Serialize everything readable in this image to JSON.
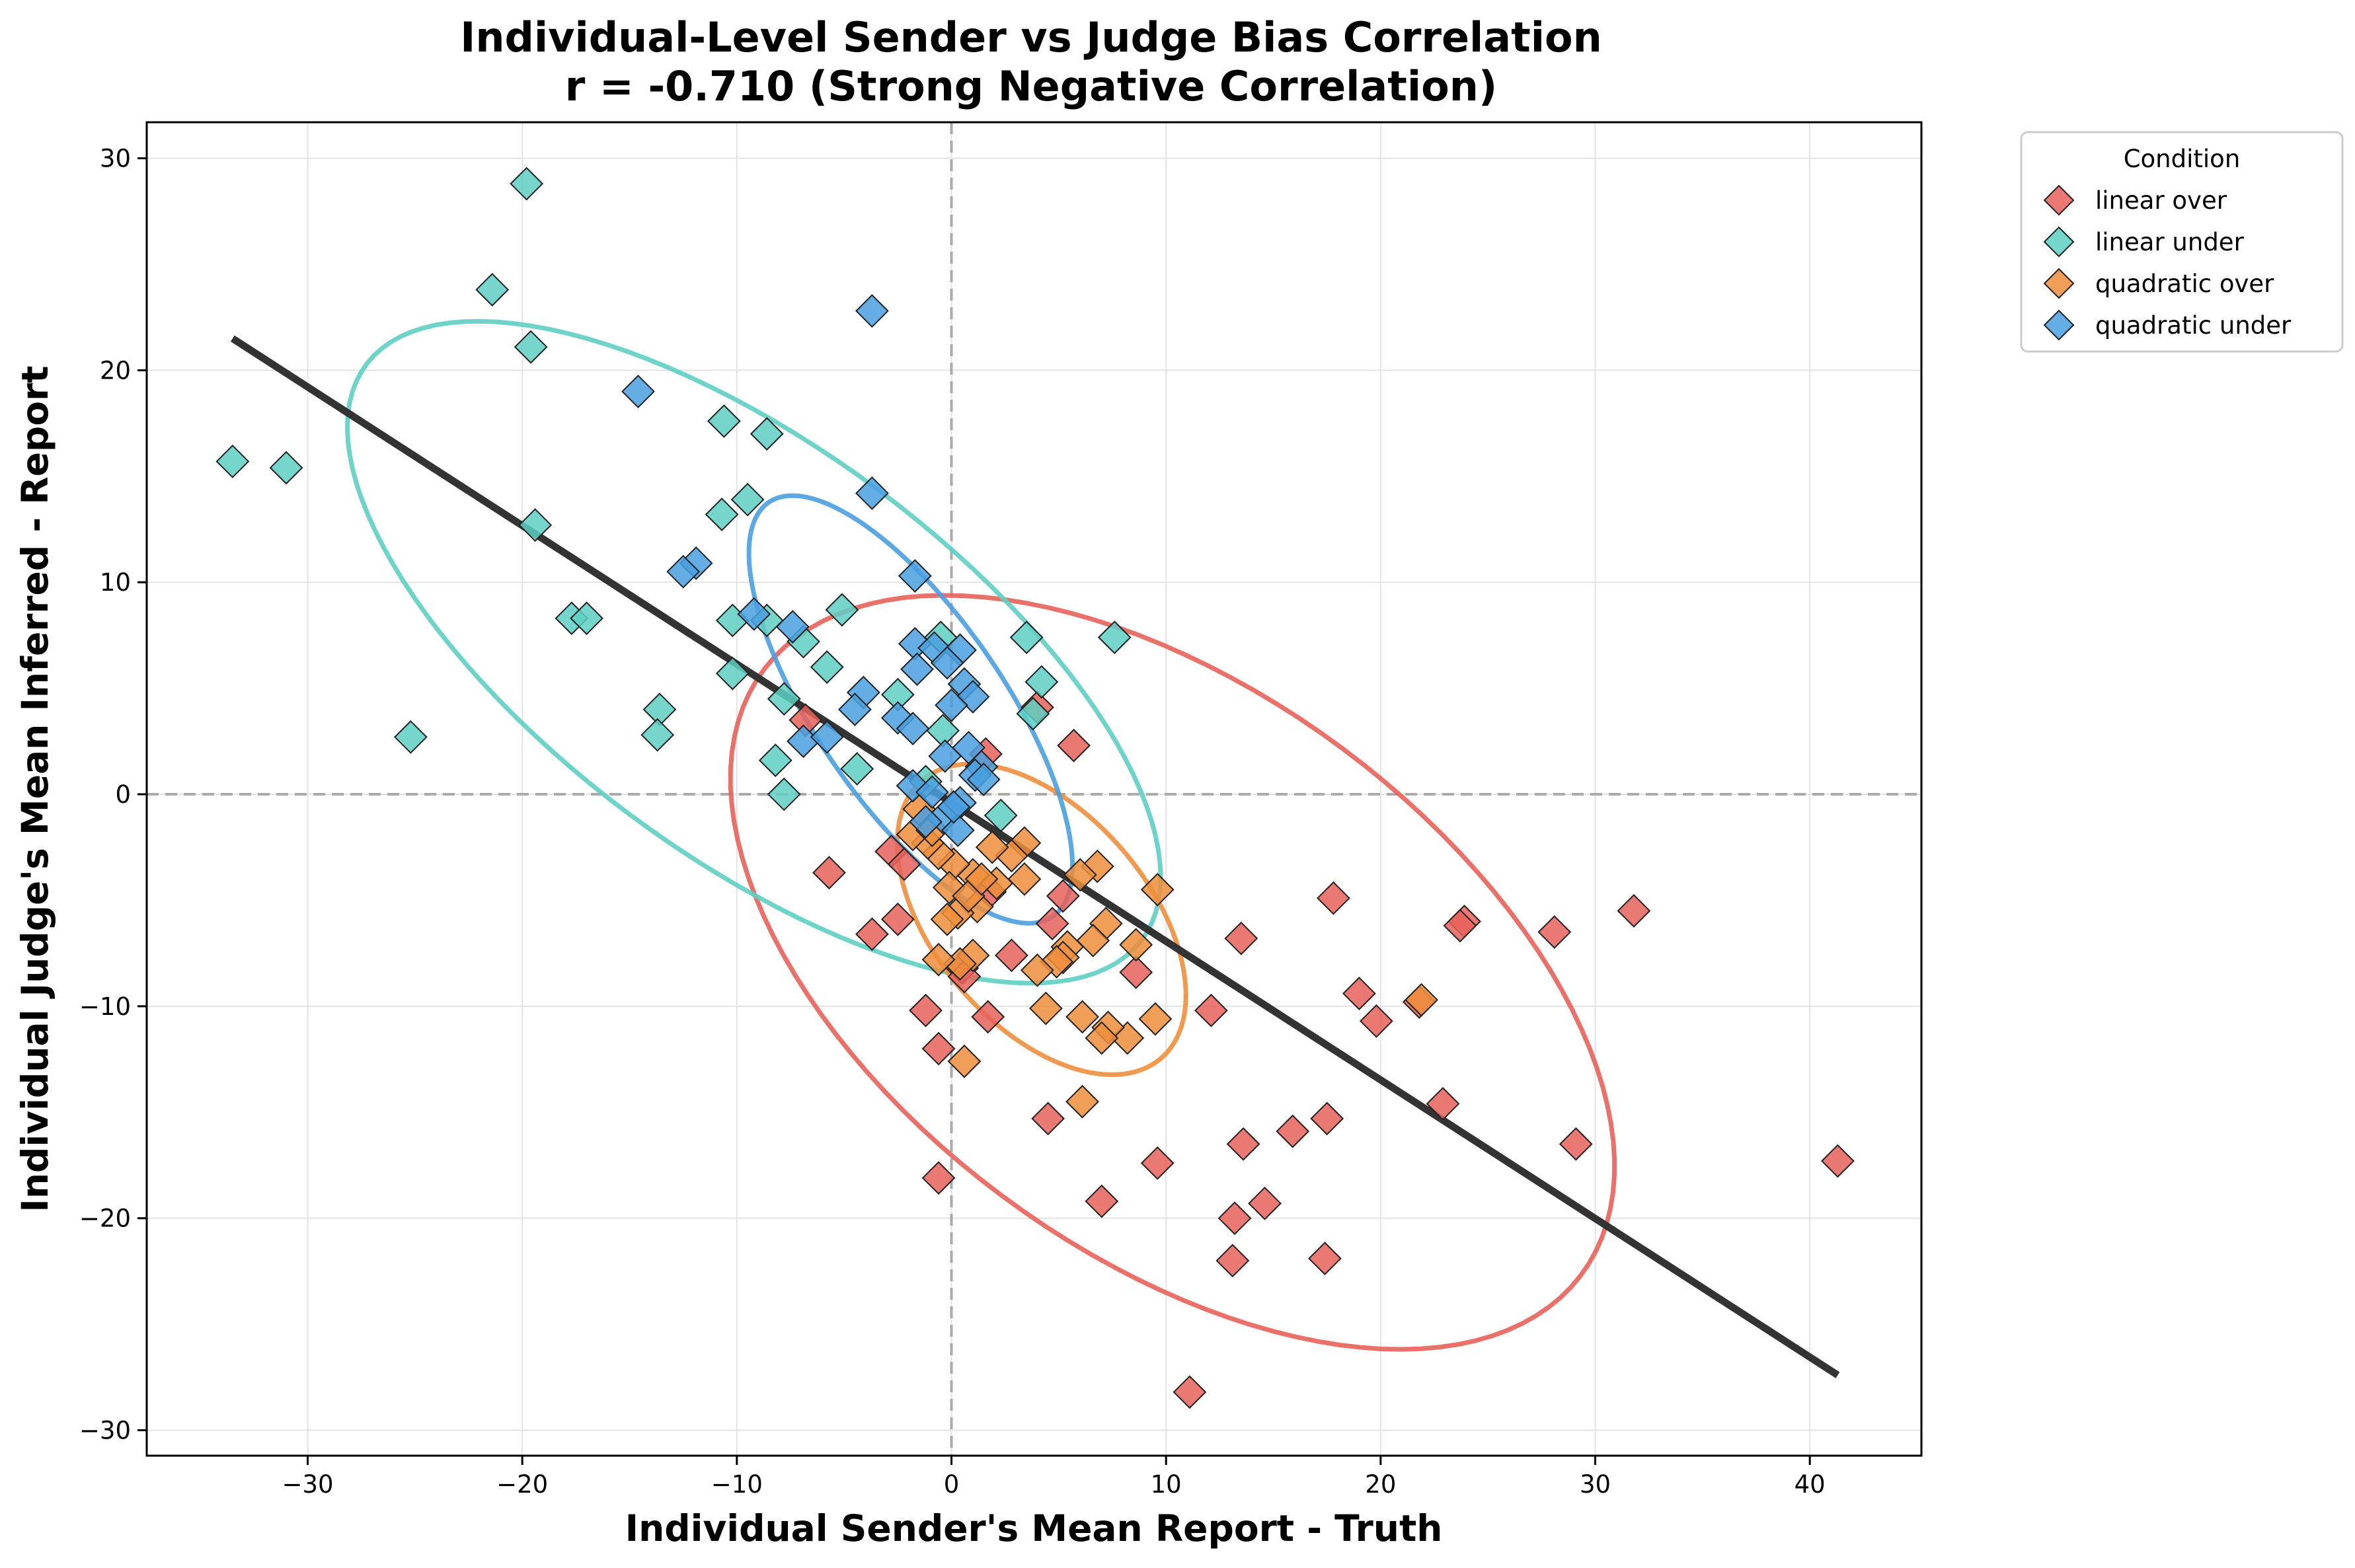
{
  "chart_data": {
    "type": "scatter",
    "title": "Individual-Level Sender vs Judge Bias Correlation",
    "subtitle": "r = -0.710 (Strong Negative Correlation)",
    "xlabel": "Individual Sender's Mean Report - Truth",
    "ylabel": "Individual Judge's Mean Inferred - Report",
    "xlim": [
      -37.5,
      45.2
    ],
    "ylim": [
      -31.2,
      31.7
    ],
    "x_ticks": [
      -30,
      -20,
      -10,
      0,
      10,
      20,
      30,
      40
    ],
    "y_ticks": [
      -30,
      -20,
      -10,
      0,
      10,
      20,
      30
    ],
    "x_tick_labels": [
      "−30",
      "−20",
      "−10",
      "0",
      "10",
      "20",
      "30",
      "40"
    ],
    "y_tick_labels": [
      "−30",
      "−20",
      "−10",
      "0",
      "10",
      "20",
      "30"
    ],
    "grid": true,
    "reference_lines": {
      "x": 0,
      "y": 0
    },
    "legend": {
      "title": "Condition",
      "placement": "outside-top-right"
    },
    "regression_line": {
      "x": [
        -33.5,
        41.3
      ],
      "y": [
        21.5,
        -27.4
      ],
      "color": "#333333"
    },
    "series": [
      {
        "name": "linear over",
        "color": "#e8625a",
        "marker": "diamond",
        "points": [
          [
            41.3,
            -17.3
          ],
          [
            31.8,
            -5.5
          ],
          [
            29.1,
            -16.5
          ],
          [
            28.1,
            -6.5
          ],
          [
            23.9,
            -6.0
          ],
          [
            23.7,
            -6.2
          ],
          [
            22.9,
            -14.6
          ],
          [
            21.8,
            -9.8
          ],
          [
            19.8,
            -10.7
          ],
          [
            19.0,
            -9.4
          ],
          [
            17.8,
            -4.9
          ],
          [
            17.5,
            -15.3
          ],
          [
            17.4,
            -21.9
          ],
          [
            15.9,
            -15.9
          ],
          [
            14.6,
            -19.3
          ],
          [
            13.6,
            -16.5
          ],
          [
            13.5,
            -6.8
          ],
          [
            13.2,
            -20.0
          ],
          [
            13.1,
            -22.0
          ],
          [
            12.1,
            -10.2
          ],
          [
            11.1,
            -28.2
          ],
          [
            9.6,
            -17.4
          ],
          [
            8.6,
            -8.4
          ],
          [
            7.0,
            -19.2
          ],
          [
            5.7,
            2.3
          ],
          [
            5.2,
            -4.8
          ],
          [
            4.7,
            -6.1
          ],
          [
            4.5,
            -15.3
          ],
          [
            4.0,
            4.1
          ],
          [
            2.8,
            -7.6
          ],
          [
            1.7,
            -10.5
          ],
          [
            1.8,
            -4.6
          ],
          [
            1.6,
            1.9
          ],
          [
            0.5,
            -8.2
          ],
          [
            0.6,
            -8.6
          ],
          [
            -0.6,
            -12.0
          ],
          [
            -0.6,
            -18.1
          ],
          [
            -1.2,
            -10.2
          ],
          [
            -2.5,
            -5.9
          ],
          [
            -3.7,
            -6.6
          ],
          [
            -5.7,
            -3.7
          ],
          [
            -6.8,
            3.5
          ],
          [
            -2.8,
            -2.7
          ],
          [
            -2.2,
            -3.3
          ]
        ]
      },
      {
        "name": "linear under",
        "color": "#5ecfc3",
        "marker": "diamond",
        "points": [
          [
            -33.5,
            15.7
          ],
          [
            -31.0,
            15.4
          ],
          [
            -25.2,
            2.7
          ],
          [
            -21.4,
            23.8
          ],
          [
            -19.8,
            28.8
          ],
          [
            -19.6,
            21.1
          ],
          [
            -19.4,
            12.7
          ],
          [
            -17.7,
            8.3
          ],
          [
            -17.0,
            8.3
          ],
          [
            -13.6,
            4.0
          ],
          [
            -13.7,
            2.8
          ],
          [
            -10.6,
            17.6
          ],
          [
            -10.7,
            13.2
          ],
          [
            -9.5,
            13.9
          ],
          [
            -10.2,
            8.2
          ],
          [
            -10.2,
            5.7
          ],
          [
            -8.6,
            17.0
          ],
          [
            -8.6,
            8.2
          ],
          [
            -7.8,
            4.5
          ],
          [
            -8.2,
            1.6
          ],
          [
            -7.8,
            0.0
          ],
          [
            -6.9,
            7.2
          ],
          [
            -5.8,
            6.0
          ],
          [
            -5.1,
            8.7
          ],
          [
            -4.4,
            1.2
          ],
          [
            -2.5,
            4.7
          ],
          [
            -0.5,
            7.4
          ],
          [
            3.5,
            7.4
          ],
          [
            7.6,
            7.4
          ],
          [
            4.2,
            5.3
          ],
          [
            3.8,
            3.8
          ],
          [
            2.3,
            -1.0
          ],
          [
            -0.4,
            3.0
          ],
          [
            -1.2,
            0.6
          ]
        ]
      },
      {
        "name": "quadratic over",
        "color": "#ef8e3b",
        "marker": "diamond",
        "points": [
          [
            21.9,
            -9.7
          ],
          [
            9.6,
            -4.5
          ],
          [
            9.5,
            -10.6
          ],
          [
            8.6,
            -7.1
          ],
          [
            8.2,
            -11.5
          ],
          [
            7.3,
            -11.0
          ],
          [
            7.2,
            -6.1
          ],
          [
            7.0,
            -11.5
          ],
          [
            6.8,
            -3.4
          ],
          [
            6.6,
            -6.9
          ],
          [
            6.1,
            -10.5
          ],
          [
            6.1,
            -14.5
          ],
          [
            6.0,
            -3.8
          ],
          [
            5.4,
            -7.2
          ],
          [
            5.2,
            -7.7
          ],
          [
            4.9,
            -7.9
          ],
          [
            4.4,
            -10.1
          ],
          [
            4.0,
            -8.3
          ],
          [
            3.4,
            -4.0
          ],
          [
            3.4,
            -2.3
          ],
          [
            2.8,
            -2.9
          ],
          [
            2.1,
            -4.2
          ],
          [
            1.9,
            -2.5
          ],
          [
            1.2,
            -5.3
          ],
          [
            1.0,
            -7.6
          ],
          [
            1.0,
            -3.8
          ],
          [
            0.6,
            -12.6
          ],
          [
            0.4,
            -8.0
          ],
          [
            0.3,
            -5.6
          ],
          [
            0.1,
            -3.3
          ],
          [
            -0.2,
            -5.9
          ],
          [
            -0.1,
            -4.4
          ],
          [
            -0.6,
            -7.8
          ],
          [
            -0.6,
            -2.8
          ],
          [
            -1.1,
            -2.3
          ],
          [
            -1.8,
            -1.9
          ],
          [
            -1.5,
            -0.7
          ],
          [
            -0.9,
            -1.7
          ],
          [
            0.8,
            -4.8
          ],
          [
            1.4,
            -4.0
          ]
        ]
      },
      {
        "name": "quadratic under",
        "color": "#4a9fe0",
        "marker": "diamond",
        "points": [
          [
            -3.7,
            22.8
          ],
          [
            -14.6,
            19.0
          ],
          [
            -3.7,
            14.2
          ],
          [
            -11.9,
            10.9
          ],
          [
            -12.5,
            10.5
          ],
          [
            -1.7,
            10.3
          ],
          [
            -9.2,
            8.5
          ],
          [
            -7.4,
            7.9
          ],
          [
            -1.7,
            7.1
          ],
          [
            -0.8,
            6.9
          ],
          [
            0.4,
            6.8
          ],
          [
            -0.2,
            6.2
          ],
          [
            -1.6,
            5.9
          ],
          [
            0.6,
            5.2
          ],
          [
            -4.1,
            4.8
          ],
          [
            1.0,
            4.6
          ],
          [
            0.0,
            4.2
          ],
          [
            -4.5,
            4.0
          ],
          [
            -2.5,
            3.6
          ],
          [
            -1.8,
            3.1
          ],
          [
            -6.9,
            2.5
          ],
          [
            -5.8,
            2.7
          ],
          [
            0.8,
            2.2
          ],
          [
            -0.3,
            1.8
          ],
          [
            1.4,
            1.3
          ],
          [
            1.1,
            0.9
          ],
          [
            -1.8,
            0.4
          ],
          [
            0.4,
            -0.4
          ],
          [
            -0.4,
            -1.1
          ],
          [
            0.3,
            -1.7
          ],
          [
            -1.2,
            -1.3
          ],
          [
            0.1,
            -0.6
          ],
          [
            1.5,
            0.7
          ],
          [
            -0.9,
            0.1
          ]
        ]
      }
    ],
    "ellipses": [
      {
        "series": "linear over",
        "color": "#e8625a",
        "center": [
          10.3,
          -8.4
        ],
        "semi_major": 23.8,
        "semi_minor": 13.2,
        "angle_deg": -37
      },
      {
        "series": "linear under",
        "color": "#5ecfc3",
        "center": [
          -9.2,
          6.7
        ],
        "semi_major": 22.6,
        "semi_minor": 9.6,
        "angle_deg": -37
      },
      {
        "series": "quadratic over",
        "color": "#ef8e3b",
        "center": [
          4.2,
          -5.9
        ],
        "semi_major": 8.6,
        "semi_minor": 5.0,
        "angle_deg": -50
      },
      {
        "series": "quadratic under",
        "color": "#4a9fe0",
        "center": [
          -1.9,
          4.0
        ],
        "semi_major": 11.8,
        "semi_minor": 4.4,
        "angle_deg": -56
      }
    ]
  }
}
